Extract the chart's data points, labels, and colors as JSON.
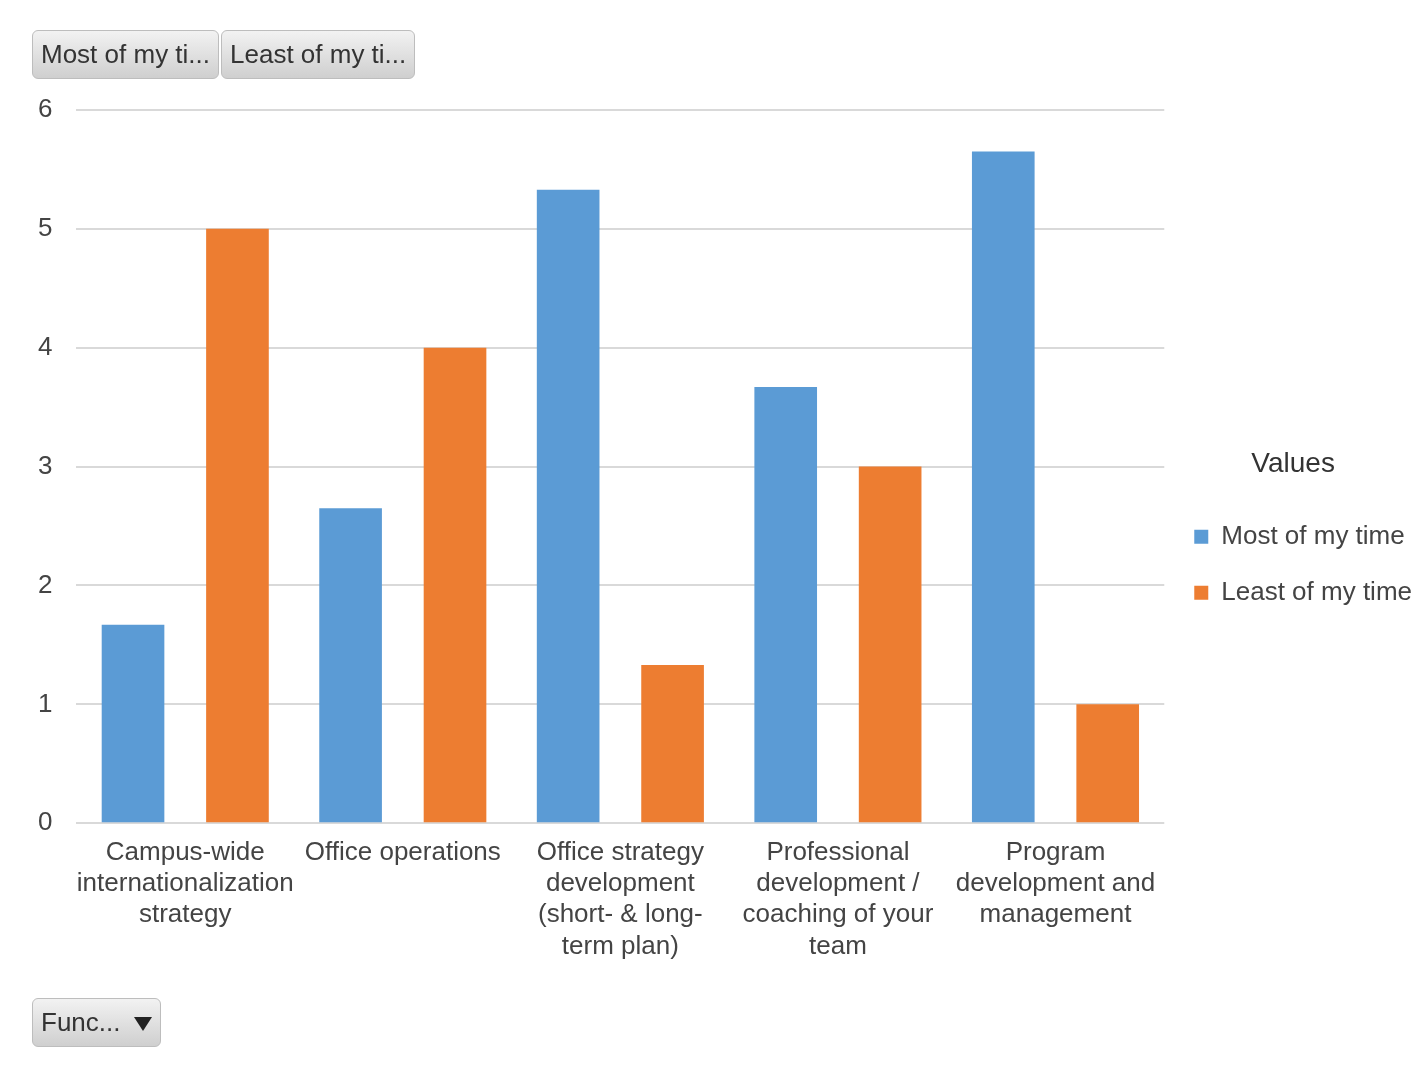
{
  "chart_data": {
    "type": "bar",
    "categories": [
      "Campus-wide internationalization strategy",
      "Office operations",
      "Office strategy development (short- & long- term plan)",
      "Professional development / coaching of your team",
      "Program development and management"
    ],
    "series": [
      {
        "name": "Most of my time",
        "color": "#5b9bd5",
        "values": [
          1.67,
          2.65,
          5.33,
          3.67,
          5.65
        ]
      },
      {
        "name": "Least of my time",
        "color": "#ed7d31",
        "values": [
          5,
          4,
          1.33,
          3,
          1
        ]
      }
    ],
    "ylim": [
      0,
      6
    ],
    "yticks": [
      0,
      1,
      2,
      3,
      4,
      5,
      6
    ],
    "grid": "y",
    "legend": "right",
    "legend_title": "Values",
    "annotations": [
      "Most of my ti...",
      "Least of my ti...",
      "Func..."
    ]
  }
}
